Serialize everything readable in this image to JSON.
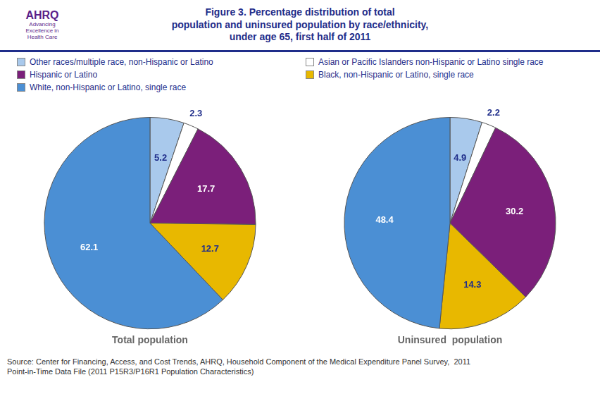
{
  "title": "Figure 3. Percentage distribution of total\npopulation and uninsured population by race/ethnicity,\nunder age 65, first half of 2011",
  "annotations": [
    "AHRQ",
    "Advancing\nExcellence in\nHealth Care",
    "Source: Center for Financing, Access, and Cost Trends, AHRQ, Household Component of the Medical Expenditure Panel Survey,  2011\nPoint-in-Time Data File (2011 P15R3/P16R1 Population Characteristics)"
  ],
  "legend": "top",
  "chart_data": [
    {
      "type": "pie",
      "title": "Total population",
      "categories": [
        "Other races/multiple race, non-Hispanic or Latino",
        "Asian or Pacific Islanders non-Hispanic or Latino single race",
        "Hispanic or Latino",
        "Black, non-Hispanic or Latino, single race",
        "White, non-Hispanic or Latino, single race"
      ],
      "values": [
        5.2,
        2.3,
        17.7,
        12.7,
        62.1
      ],
      "colors": [
        "#a9c9ec",
        "#ffffff",
        "#7b1f7a",
        "#e8b800",
        "#4b8fd4"
      ],
      "data_labels": true
    },
    {
      "type": "pie",
      "title": "Uninsured  population",
      "categories": [
        "Other races/multiple race, non-Hispanic or Latino",
        "Asian or Pacific Islanders non-Hispanic or Latino single race",
        "Hispanic or Latino",
        "Black, non-Hispanic or Latino, single race",
        "White, non-Hispanic or Latino, single race"
      ],
      "values": [
        4.9,
        2.2,
        30.2,
        14.3,
        48.4
      ],
      "colors": [
        "#a9c9ec",
        "#ffffff",
        "#7b1f7a",
        "#e8b800",
        "#4b8fd4"
      ],
      "data_labels": true
    }
  ]
}
